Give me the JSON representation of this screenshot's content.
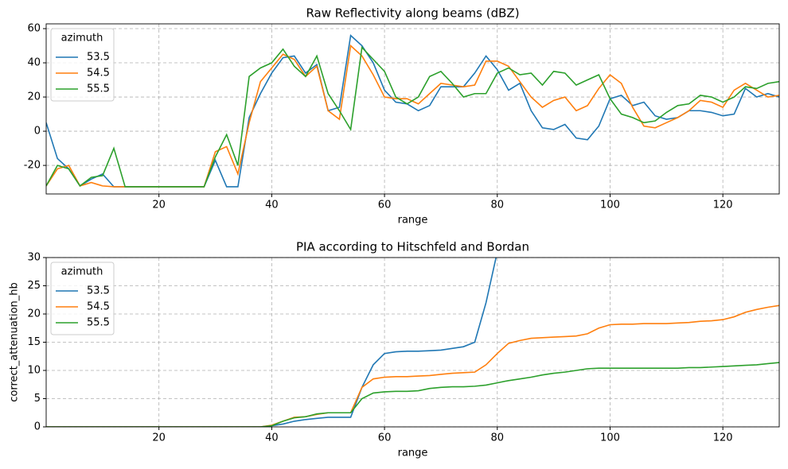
{
  "chart_data": [
    {
      "type": "line",
      "title": "Raw Reflectivity along beams (dBZ)",
      "xlabel": "range",
      "legend_title": "azimuth",
      "legend": "upper left",
      "grid": true,
      "xlim": [
        0,
        130
      ],
      "xticks": [
        20,
        40,
        60,
        80,
        100,
        120
      ],
      "ylim": [
        -36.7,
        62.8
      ],
      "yticks": [
        -20,
        0,
        20,
        40,
        60
      ],
      "x": [
        0,
        2,
        4,
        6,
        8,
        10,
        12,
        14,
        16,
        18,
        20,
        22,
        24,
        26,
        28,
        30,
        32,
        34,
        36,
        38,
        40,
        42,
        44,
        46,
        48,
        50,
        52,
        54,
        56,
        58,
        60,
        62,
        64,
        66,
        68,
        70,
        72,
        74,
        76,
        78,
        80,
        82,
        84,
        86,
        88,
        90,
        92,
        94,
        96,
        98,
        100,
        102,
        104,
        106,
        108,
        110,
        112,
        114,
        116,
        118,
        120,
        122,
        124,
        126,
        128,
        130
      ],
      "series": [
        {
          "name": "53.5",
          "color": "#1f77b4",
          "values": [
            5,
            -16,
            -22,
            -32,
            -28,
            -25,
            -32.5,
            -32.5,
            -32.5,
            -32.5,
            -32.5,
            -32.5,
            -32.5,
            -32.5,
            -32.5,
            -17,
            -32.5,
            -32.5,
            8,
            22,
            34,
            43,
            44,
            34,
            39,
            12,
            14,
            56,
            50,
            40,
            24,
            17,
            16,
            12,
            15,
            26,
            26,
            26,
            34,
            44,
            36,
            24,
            28,
            12,
            2,
            1,
            4,
            -4,
            -5,
            3,
            19,
            21,
            15,
            17,
            9,
            7,
            8,
            12,
            12,
            11,
            9,
            10,
            25,
            20,
            22,
            20
          ]
        },
        {
          "name": "54.5",
          "color": "#ff7f0e",
          "values": [
            -32,
            -22,
            -20,
            -32,
            -30,
            -32,
            -32.5,
            -32.5,
            -32.5,
            -32.5,
            -32.5,
            -32.5,
            -32.5,
            -32.5,
            -32.5,
            -12,
            -9,
            -25,
            5,
            29,
            37,
            45,
            42,
            32,
            38,
            12,
            7,
            50,
            44,
            33,
            20,
            19,
            19,
            16,
            22,
            28,
            27,
            26,
            27,
            41,
            41,
            38,
            29,
            20,
            14,
            18,
            20,
            12,
            15,
            25,
            33,
            28,
            14,
            3,
            2,
            5,
            8,
            12,
            18,
            17,
            14,
            24,
            28,
            24,
            20,
            21
          ]
        },
        {
          "name": "55.5",
          "color": "#2ca02c",
          "values": [
            -32,
            -20,
            -22,
            -32,
            -27,
            -26,
            -10,
            -32.5,
            -32.5,
            -32.5,
            -32.5,
            -32.5,
            -32.5,
            -32.5,
            -32.5,
            -15,
            -2,
            -20,
            32,
            37,
            40,
            48,
            38,
            32,
            44,
            22,
            12,
            1,
            49,
            42,
            35,
            20,
            16,
            20,
            32,
            35,
            28,
            20,
            22,
            22,
            34,
            37,
            33,
            34,
            27,
            35,
            34,
            27,
            30,
            33,
            19,
            10,
            8,
            5,
            6,
            11,
            15,
            16,
            21,
            20,
            17,
            20,
            26,
            25,
            28,
            29
          ]
        }
      ]
    },
    {
      "type": "line",
      "title": "PIA according to Hitschfeld and Bordan",
      "xlabel": "range",
      "ylabel": "correct_attenuation_hb",
      "legend_title": "azimuth",
      "legend": "upper left",
      "grid": true,
      "xlim": [
        0,
        130
      ],
      "xticks": [
        20,
        40,
        60,
        80,
        100,
        120
      ],
      "ylim": [
        0,
        30
      ],
      "yticks": [
        0,
        5,
        10,
        15,
        20,
        25,
        30
      ],
      "x": [
        0,
        2,
        4,
        6,
        8,
        10,
        12,
        14,
        16,
        18,
        20,
        22,
        24,
        26,
        28,
        30,
        32,
        34,
        36,
        38,
        40,
        42,
        44,
        46,
        48,
        50,
        52,
        54,
        56,
        58,
        60,
        62,
        64,
        66,
        68,
        70,
        72,
        74,
        76,
        78,
        80,
        82,
        84,
        86,
        88,
        90,
        92,
        94,
        96,
        98,
        100,
        102,
        104,
        106,
        108,
        110,
        112,
        114,
        116,
        118,
        120,
        122,
        124,
        126,
        128,
        130
      ],
      "series": [
        {
          "name": "53.5",
          "color": "#1f77b4",
          "values": [
            0,
            0,
            0,
            0,
            0,
            0,
            0,
            0,
            0,
            0,
            0,
            0,
            0,
            0,
            0,
            0,
            0,
            0,
            0,
            0,
            0.2,
            0.5,
            1,
            1.3,
            1.5,
            1.7,
            1.7,
            1.7,
            7,
            11,
            13,
            13.3,
            13.4,
            13.4,
            13.5,
            13.6,
            13.9,
            14.2,
            15,
            22,
            31,
            null,
            null,
            null,
            null,
            null,
            null,
            null,
            null,
            null,
            null,
            null,
            null,
            null,
            null,
            null,
            null,
            null,
            null,
            null,
            null,
            null,
            null,
            null,
            null,
            null
          ]
        },
        {
          "name": "54.5",
          "color": "#ff7f0e",
          "values": [
            0,
            0,
            0,
            0,
            0,
            0,
            0,
            0,
            0,
            0,
            0,
            0,
            0,
            0,
            0,
            0,
            0,
            0,
            0,
            0,
            0.3,
            1,
            1.7,
            1.8,
            2.2,
            2.5,
            2.5,
            2.5,
            7,
            8.5,
            8.8,
            8.9,
            8.9,
            9,
            9.1,
            9.3,
            9.5,
            9.6,
            9.7,
            11,
            13,
            14.8,
            15.3,
            15.7,
            15.8,
            15.9,
            16,
            16.1,
            16.5,
            17.5,
            18.1,
            18.2,
            18.2,
            18.3,
            18.3,
            18.3,
            18.4,
            18.5,
            18.7,
            18.8,
            19,
            19.5,
            20.3,
            20.8,
            21.2,
            21.5
          ]
        },
        {
          "name": "55.5",
          "color": "#2ca02c",
          "values": [
            0,
            0,
            0,
            0,
            0,
            0,
            0,
            0,
            0,
            0,
            0,
            0,
            0,
            0,
            0,
            0,
            0,
            0,
            0,
            0,
            0.2,
            1,
            1.6,
            1.8,
            2.3,
            2.5,
            2.5,
            2.5,
            5,
            6,
            6.2,
            6.3,
            6.3,
            6.4,
            6.8,
            7,
            7.1,
            7.1,
            7.2,
            7.4,
            7.8,
            8.2,
            8.5,
            8.8,
            9.2,
            9.5,
            9.7,
            10,
            10.3,
            10.4,
            10.4,
            10.4,
            10.4,
            10.4,
            10.4,
            10.4,
            10.4,
            10.5,
            10.5,
            10.6,
            10.7,
            10.8,
            10.9,
            11,
            11.2,
            11.4
          ]
        }
      ]
    }
  ]
}
